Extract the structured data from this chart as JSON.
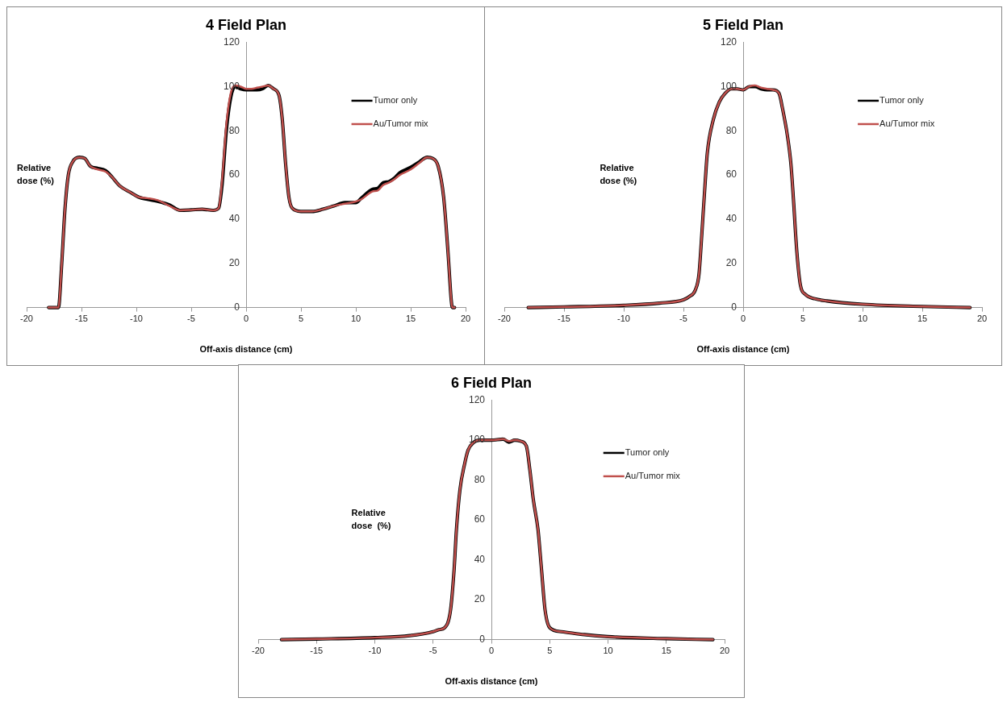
{
  "chart_data": [
    {
      "type": "line",
      "title": "4 Field Plan",
      "xlabel": "Off-axis distance (cm)",
      "ylabel": "Relative dose (%)",
      "legend": "right",
      "marker": "none",
      "xlim": [
        -20,
        20
      ],
      "xticks": [
        -20,
        -15,
        -10,
        -5,
        0,
        5,
        10,
        15,
        20
      ],
      "ylim": [
        0,
        120
      ],
      "yticks": [
        0,
        20,
        40,
        60,
        80,
        100,
        120
      ],
      "x": [
        -18,
        -17.1,
        -16.8,
        -16.5,
        -16.2,
        -15.8,
        -15.2,
        -14.7,
        -14.2,
        -13.5,
        -12.8,
        -12.2,
        -11.5,
        -10.5,
        -9.8,
        -9,
        -8,
        -7,
        -6,
        -5,
        -4,
        -3,
        -2.5,
        -2.2,
        -1.8,
        -1.4,
        -1,
        -0.5,
        0,
        0.5,
        1,
        1.5,
        2,
        2.5,
        3,
        3.3,
        3.6,
        3.9,
        4.2,
        5,
        6,
        7,
        8,
        9,
        10,
        10.5,
        11.5,
        12,
        12.5,
        13,
        13.5,
        14,
        15,
        15.8,
        16.5,
        17,
        17.5,
        18,
        18.4,
        18.7,
        18.8,
        19
      ],
      "series": [
        {
          "name": "Tumor only",
          "color": "#000000",
          "values": [
            0,
            0,
            20,
            45,
            60,
            66,
            68,
            67.5,
            64,
            63,
            62,
            59,
            55,
            52,
            50,
            49,
            48,
            46.5,
            44,
            44.2,
            44.5,
            44,
            45,
            55,
            80,
            95,
            100,
            99,
            98.5,
            98.5,
            98.5,
            99,
            100.5,
            99,
            96,
            85,
            65,
            50,
            45,
            43.5,
            43.5,
            44.5,
            46,
            47.5,
            47.5,
            49.5,
            53.5,
            54,
            56.5,
            57,
            58.5,
            61,
            63.5,
            66,
            68,
            67.5,
            64,
            50,
            25,
            3,
            0,
            0
          ]
        },
        {
          "name": "Au/Tumor mix",
          "color": "#c0504d",
          "values": [
            0,
            0,
            20,
            45,
            60,
            66,
            68,
            67.5,
            64,
            62.5,
            61.5,
            59,
            55,
            52,
            50,
            49.5,
            48.5,
            46,
            44,
            44.2,
            44.5,
            44,
            45,
            57,
            83,
            97,
            100.5,
            100,
            99,
            99,
            99.5,
            100,
            100.5,
            99,
            96,
            85,
            65,
            50,
            45,
            43.5,
            43.5,
            44.5,
            46,
            47,
            48,
            49,
            52.5,
            53,
            55.5,
            56.5,
            58,
            60,
            62.5,
            65.5,
            68,
            67.5,
            64,
            50,
            25,
            3,
            0,
            0
          ]
        }
      ]
    },
    {
      "type": "line",
      "title": "5 Field Plan",
      "xlabel": "Off-axis distance (cm)",
      "ylabel": "Relative dose (%)",
      "legend": "right",
      "marker": "none",
      "xlim": [
        -20,
        20
      ],
      "xticks": [
        -20,
        -15,
        -10,
        -5,
        0,
        5,
        10,
        15,
        20
      ],
      "ylim": [
        0,
        120
      ],
      "yticks": [
        0,
        20,
        40,
        60,
        80,
        100,
        120
      ],
      "x": [
        -18,
        -15,
        -10,
        -7,
        -5,
        -4.5,
        -4,
        -3.7,
        -3.5,
        -3.2,
        -3,
        -2.5,
        -2,
        -1.5,
        -1,
        -0.5,
        0,
        0.5,
        1,
        1.5,
        2,
        2.5,
        3,
        3.3,
        3.7,
        4,
        4.2,
        4.5,
        4.8,
        5.2,
        6,
        7,
        10,
        15,
        19
      ],
      "series": [
        {
          "name": "Tumor only",
          "color": "#000000",
          "values": [
            0,
            0.3,
            1,
            2,
            3.5,
            5,
            8,
            15,
            30,
            55,
            70,
            85,
            93,
            97,
            99,
            99,
            98.5,
            100,
            100,
            99,
            98.5,
            98.5,
            97,
            90,
            78,
            65,
            50,
            25,
            10,
            6,
            4,
            3,
            1.5,
            0.5,
            0
          ]
        },
        {
          "name": "Au/Tumor mix",
          "color": "#c0504d",
          "values": [
            0,
            0.3,
            1,
            2,
            3.5,
            5,
            8,
            15,
            30,
            55,
            70,
            85,
            93,
            97,
            99,
            99,
            98.5,
            100,
            100.5,
            99.5,
            99,
            98.5,
            97,
            90,
            78,
            65,
            50,
            25,
            10,
            6,
            4,
            3,
            1.5,
            0.5,
            0
          ]
        }
      ]
    },
    {
      "type": "line",
      "title": "6 Field Plan",
      "xlabel": "Off-axis distance (cm)",
      "ylabel": "Relative dose  (%)",
      "legend": "right",
      "marker": "none",
      "xlim": [
        -20,
        20
      ],
      "xticks": [
        -20,
        -15,
        -10,
        -5,
        0,
        5,
        10,
        15,
        20
      ],
      "ylim": [
        0,
        120
      ],
      "yticks": [
        0,
        20,
        40,
        60,
        80,
        100,
        120
      ],
      "x": [
        -18,
        -15,
        -10,
        -7,
        -5,
        -4.5,
        -4,
        -3.5,
        -3.2,
        -3,
        -2.7,
        -2.3,
        -2,
        -1.5,
        -1,
        0,
        1,
        1.5,
        2,
        2.5,
        3,
        3.3,
        3.6,
        4,
        4.3,
        4.6,
        5,
        6,
        8,
        10,
        15,
        19
      ],
      "series": [
        {
          "name": "Tumor only",
          "color": "#000000",
          "values": [
            0,
            0.3,
            1,
            2,
            4,
            5,
            6,
            15,
            35,
            55,
            75,
            88,
            95,
            99,
            100,
            100,
            100.5,
            99,
            100,
            99.5,
            97,
            85,
            70,
            55,
            35,
            15,
            6,
            4,
            2.5,
            1.5,
            0.5,
            0
          ]
        },
        {
          "name": "Au/Tumor mix",
          "color": "#c0504d",
          "values": [
            0,
            0.3,
            1,
            2,
            4,
            5,
            6,
            15,
            35,
            55,
            75,
            88,
            95,
            99,
            100,
            100,
            100.5,
            99.5,
            100,
            99.5,
            97,
            85,
            70,
            55,
            35,
            15,
            6,
            4,
            2.5,
            1.5,
            0.5,
            0
          ]
        }
      ]
    }
  ]
}
